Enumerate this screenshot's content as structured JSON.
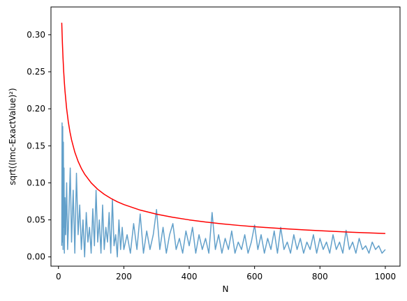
{
  "chart_data": {
    "type": "line",
    "xlabel": "N",
    "ylabel": "sqrt((Imc-ExactValue)²)",
    "xlim": [
      -23,
      1045
    ],
    "ylim": [
      -0.0125,
      0.3375
    ],
    "xticks": [
      0,
      200,
      400,
      600,
      800,
      1000
    ],
    "yticks": [
      0.0,
      0.05,
      0.1,
      0.15,
      0.2,
      0.25,
      0.3
    ],
    "grid": false,
    "series": [
      {
        "kind": "bound",
        "color": "#ff0000",
        "formula": "1/sqrt(N)",
        "x": [
          10,
          12,
          14,
          16,
          18,
          20,
          25,
          30,
          35,
          40,
          50,
          60,
          70,
          80,
          100,
          120,
          140,
          160,
          180,
          200,
          250,
          300,
          350,
          400,
          450,
          500,
          550,
          600,
          650,
          700,
          750,
          800,
          850,
          900,
          950,
          1000
        ],
        "values": [
          0.3162,
          0.2887,
          0.2673,
          0.25,
          0.2357,
          0.2236,
          0.2,
          0.1826,
          0.169,
          0.1581,
          0.1414,
          0.1291,
          0.1195,
          0.1118,
          0.1,
          0.0913,
          0.0845,
          0.0791,
          0.0745,
          0.0707,
          0.0632,
          0.0577,
          0.0535,
          0.05,
          0.0471,
          0.0447,
          0.0426,
          0.0408,
          0.0392,
          0.0378,
          0.0365,
          0.0354,
          0.0343,
          0.0333,
          0.0324,
          0.0316
        ]
      },
      {
        "kind": "error",
        "color": "#1f77b4",
        "opacity": 0.7,
        "x": [
          10,
          11,
          12,
          13,
          14,
          15,
          16,
          17,
          18,
          20,
          22,
          25,
          28,
          32,
          36,
          40,
          45,
          50,
          55,
          60,
          65,
          70,
          75,
          80,
          85,
          90,
          95,
          100,
          105,
          110,
          115,
          120,
          125,
          130,
          135,
          140,
          145,
          150,
          155,
          160,
          165,
          170,
          175,
          180,
          185,
          190,
          195,
          200,
          210,
          220,
          230,
          240,
          250,
          260,
          270,
          280,
          290,
          300,
          310,
          320,
          330,
          340,
          350,
          360,
          370,
          380,
          390,
          400,
          410,
          420,
          430,
          440,
          450,
          460,
          470,
          480,
          490,
          500,
          510,
          520,
          530,
          540,
          550,
          560,
          570,
          580,
          590,
          600,
          610,
          620,
          630,
          640,
          650,
          660,
          670,
          680,
          690,
          700,
          710,
          720,
          730,
          740,
          750,
          760,
          770,
          780,
          790,
          800,
          810,
          820,
          830,
          840,
          850,
          860,
          870,
          880,
          890,
          900,
          910,
          920,
          930,
          940,
          950,
          960,
          970,
          980,
          990,
          1000
        ],
        "values": [
          0.015,
          0.181,
          0.02,
          0.176,
          0.01,
          0.155,
          0.04,
          0.12,
          0.005,
          0.08,
          0.03,
          0.1,
          0.01,
          0.06,
          0.12,
          0.02,
          0.09,
          0.005,
          0.113,
          0.03,
          0.07,
          0.01,
          0.05,
          0.0,
          0.06,
          0.02,
          0.04,
          0.005,
          0.065,
          0.015,
          0.09,
          0.02,
          0.05,
          0.005,
          0.07,
          0.01,
          0.04,
          0.02,
          0.06,
          0.005,
          0.078,
          0.015,
          0.03,
          0.0,
          0.05,
          0.01,
          0.04,
          0.01,
          0.03,
          0.005,
          0.045,
          0.01,
          0.058,
          0.005,
          0.035,
          0.01,
          0.03,
          0.064,
          0.01,
          0.04,
          0.005,
          0.03,
          0.045,
          0.01,
          0.025,
          0.005,
          0.035,
          0.015,
          0.04,
          0.005,
          0.03,
          0.01,
          0.025,
          0.005,
          0.06,
          0.01,
          0.03,
          0.005,
          0.025,
          0.01,
          0.035,
          0.005,
          0.02,
          0.01,
          0.03,
          0.005,
          0.02,
          0.043,
          0.01,
          0.03,
          0.005,
          0.025,
          0.01,
          0.035,
          0.005,
          0.04,
          0.01,
          0.02,
          0.005,
          0.03,
          0.01,
          0.025,
          0.005,
          0.02,
          0.01,
          0.03,
          0.005,
          0.025,
          0.01,
          0.02,
          0.005,
          0.03,
          0.01,
          0.02,
          0.005,
          0.036,
          0.01,
          0.02,
          0.005,
          0.025,
          0.01,
          0.015,
          0.005,
          0.02,
          0.01,
          0.015,
          0.005,
          0.01
        ]
      }
    ]
  }
}
